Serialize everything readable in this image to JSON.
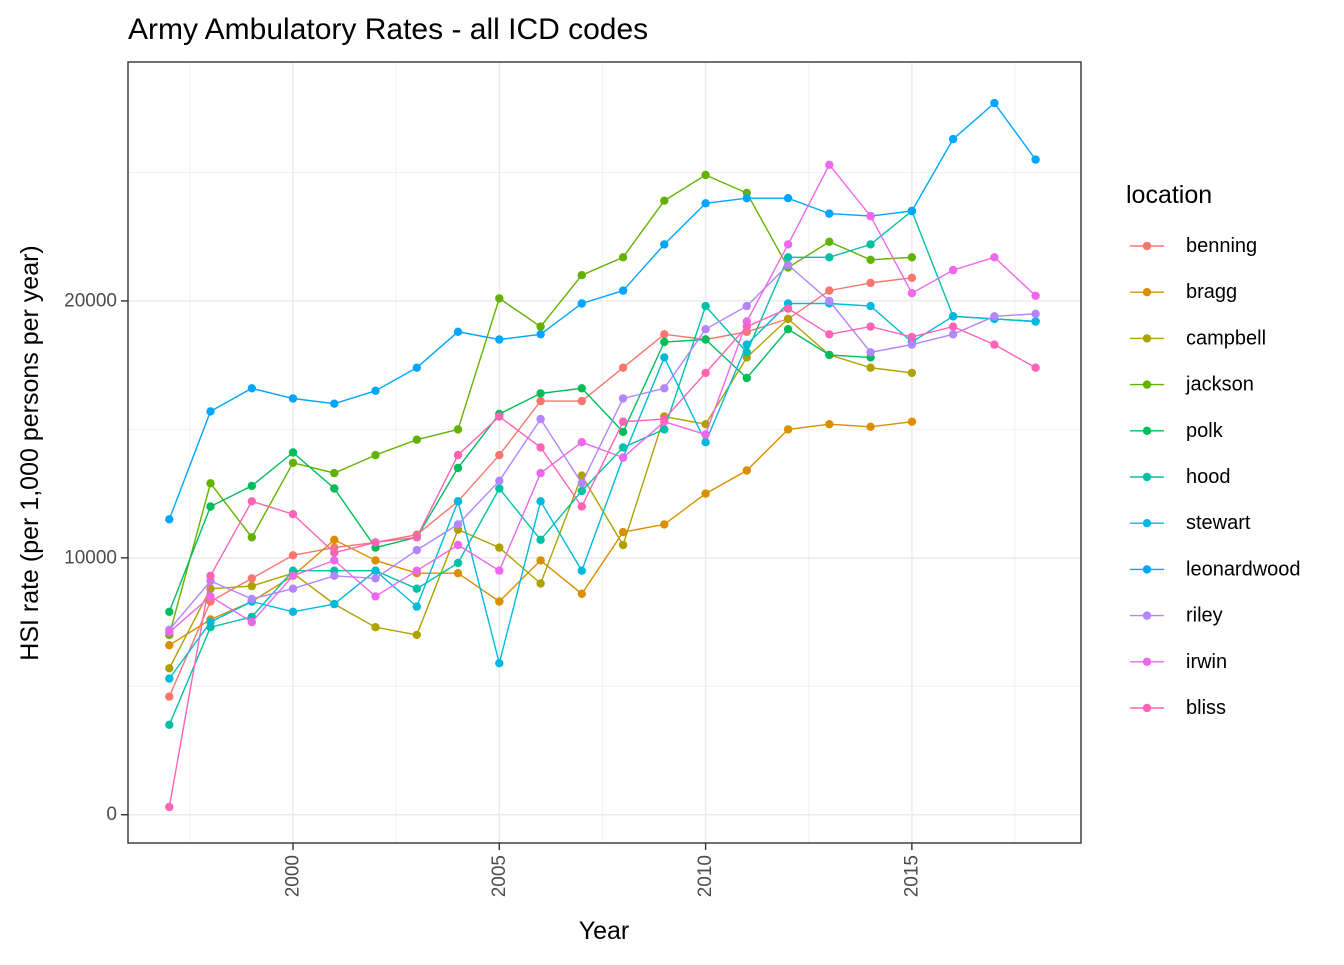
{
  "chart_data": {
    "type": "line",
    "title": "Army Ambulatory Rates - all ICD codes",
    "xlabel": "Year",
    "ylabel": "HSI rate (per 1,000 persons per year)",
    "xlim": [
      1996.0,
      2019.1
    ],
    "ylim": [
      -1100,
      29300
    ],
    "x_ticks": [
      2000,
      2005,
      2010,
      2015
    ],
    "y_ticks": [
      0,
      10000,
      20000
    ],
    "x_tick_labels": [
      "2000",
      "2005",
      "2010",
      "2015"
    ],
    "y_tick_labels": [
      "0",
      "10000",
      "20000"
    ],
    "grid": true,
    "legend_title": "location",
    "legend_position": "right",
    "series": [
      {
        "name": "benning",
        "color": "#F8766D",
        "x": [
          1997,
          1998,
          1999,
          2000,
          2001,
          2002,
          2003,
          2004,
          2005,
          2006,
          2007,
          2008,
          2009,
          2010,
          2011,
          2012,
          2013,
          2014,
          2015
        ],
        "y": [
          4600,
          8300,
          9200,
          10100,
          10400,
          10600,
          10900,
          12200,
          14000,
          16100,
          16100,
          17400,
          18700,
          18500,
          18800,
          19300,
          20400,
          20700,
          20900
        ]
      },
      {
        "name": "bragg",
        "color": "#DB8E00",
        "x": [
          1997,
          1998,
          1999,
          2000,
          2001,
          2002,
          2003,
          2004,
          2005,
          2006,
          2007,
          2008,
          2009,
          2010,
          2011,
          2012,
          2013,
          2014,
          2015
        ],
        "y": [
          6600,
          7600,
          8300,
          9300,
          10700,
          9900,
          9400,
          9400,
          8300,
          9900,
          8600,
          11000,
          11300,
          12500,
          13400,
          15000,
          15200,
          15100,
          15300
        ]
      },
      {
        "name": "campbell",
        "color": "#AEA200",
        "x": [
          1997,
          1998,
          1999,
          2000,
          2001,
          2002,
          2003,
          2004,
          2005,
          2006,
          2007,
          2008,
          2009,
          2010,
          2011,
          2012,
          2013,
          2014,
          2015
        ],
        "y": [
          5700,
          8800,
          8900,
          9400,
          8200,
          7300,
          7000,
          11100,
          10400,
          9000,
          13200,
          10500,
          15500,
          15200,
          17800,
          19300,
          17900,
          17400,
          17200
        ]
      },
      {
        "name": "jackson",
        "color": "#64B200",
        "x": [
          1997,
          1998,
          1999,
          2000,
          2001,
          2002,
          2003,
          2004,
          2005,
          2006,
          2007,
          2008,
          2009,
          2010,
          2011,
          2012,
          2013,
          2014,
          2015
        ],
        "y": [
          7000,
          12900,
          10800,
          13700,
          13300,
          14000,
          14600,
          15000,
          20100,
          19000,
          21000,
          21700,
          23900,
          24900,
          24200,
          21300,
          22300,
          21600,
          21700
        ]
      },
      {
        "name": "polk",
        "color": "#00BD5C",
        "x": [
          1997,
          1998,
          1999,
          2000,
          2001,
          2002,
          2003,
          2004,
          2005,
          2006,
          2007,
          2008,
          2009,
          2010,
          2011,
          2012,
          2013,
          2014
        ],
        "y": [
          7900,
          12000,
          12800,
          14100,
          12700,
          10400,
          10800,
          13500,
          15600,
          16400,
          16600,
          14900,
          18400,
          18500,
          17000,
          18900,
          17900,
          17800
        ]
      },
      {
        "name": "hood",
        "color": "#00C1A7",
        "x": [
          1997,
          1998,
          1999,
          2000,
          2001,
          2002,
          2003,
          2004,
          2005,
          2006,
          2007,
          2008,
          2009,
          2010,
          2011,
          2012,
          2013,
          2014,
          2015,
          2016,
          2017,
          2018
        ],
        "y": [
          3500,
          7300,
          7700,
          9500,
          9500,
          9500,
          8800,
          9800,
          12700,
          10700,
          12600,
          14300,
          15000,
          19800,
          18000,
          21700,
          21700,
          22200,
          23500,
          19400,
          19300,
          19200
        ]
      },
      {
        "name": "stewart",
        "color": "#00BADE",
        "x": [
          1997,
          1998,
          1999,
          2000,
          2001,
          2002,
          2003,
          2004,
          2005,
          2006,
          2007,
          2008,
          2009,
          2010,
          2011,
          2012,
          2013,
          2014,
          2015,
          2016,
          2017,
          2018
        ],
        "y": [
          5300,
          7500,
          8300,
          7900,
          8200,
          9500,
          8100,
          12200,
          5900,
          12200,
          9500,
          13900,
          17800,
          14500,
          18300,
          19900,
          19900,
          19800,
          18400,
          19400,
          19300,
          19200
        ]
      },
      {
        "name": "leonardwood",
        "color": "#00A6FF",
        "x": [
          1997,
          1998,
          1999,
          2000,
          2001,
          2002,
          2003,
          2004,
          2005,
          2006,
          2007,
          2008,
          2009,
          2010,
          2011,
          2012,
          2013,
          2014,
          2015,
          2016,
          2017,
          2018
        ],
        "y": [
          11500,
          15700,
          16600,
          16200,
          16000,
          16500,
          17400,
          18800,
          18500,
          18700,
          19900,
          20400,
          22200,
          23800,
          24000,
          24000,
          23400,
          23300,
          23500,
          26300,
          27700,
          25500
        ]
      },
      {
        "name": "riley",
        "color": "#B385FF",
        "x": [
          1997,
          1998,
          1999,
          2000,
          2001,
          2002,
          2003,
          2004,
          2005,
          2006,
          2007,
          2008,
          2009,
          2010,
          2011,
          2012,
          2013,
          2014,
          2015,
          2016,
          2017,
          2018
        ],
        "y": [
          7200,
          9100,
          8400,
          8800,
          9300,
          9200,
          10300,
          11300,
          13000,
          15400,
          12900,
          16200,
          16600,
          18900,
          19800,
          21400,
          20000,
          18000,
          18300,
          18700,
          19400,
          19500
        ]
      },
      {
        "name": "irwin",
        "color": "#EF67EB",
        "x": [
          1997,
          1998,
          1999,
          2000,
          2001,
          2002,
          2003,
          2004,
          2005,
          2006,
          2007,
          2008,
          2009,
          2010,
          2011,
          2012,
          2013,
          2014,
          2015,
          2016,
          2017,
          2018
        ],
        "y": [
          7100,
          8500,
          7500,
          9300,
          9900,
          8500,
          9500,
          10500,
          9500,
          13300,
          14500,
          13900,
          15300,
          14800,
          19200,
          22200,
          25300,
          23300,
          20300,
          21200,
          21700,
          20200
        ]
      },
      {
        "name": "bliss",
        "color": "#FF63B6",
        "x": [
          1997,
          1998,
          1999,
          2000,
          2001,
          2002,
          2003,
          2004,
          2005,
          2006,
          2007,
          2008,
          2009,
          2010,
          2011,
          2012,
          2013,
          2014,
          2015,
          2016,
          2017,
          2018
        ],
        "y": [
          300,
          9300,
          12200,
          11700,
          10200,
          10600,
          10800,
          14000,
          15500,
          14300,
          12000,
          15300,
          15400,
          17200,
          19000,
          19700,
          18700,
          19000,
          18600,
          19000,
          18300,
          17400
        ]
      }
    ]
  }
}
